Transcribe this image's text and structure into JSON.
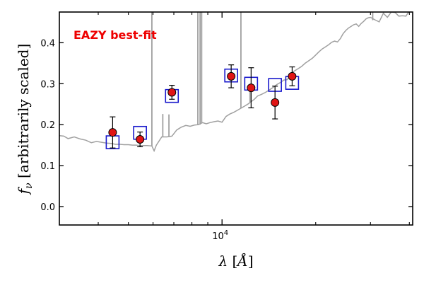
{
  "chart_data": {
    "type": "scatter",
    "title": "",
    "xlabel": "λ [Å]",
    "ylabel": "f_ν [arbitrarily scaled]",
    "x_scale": "log",
    "xlim": [
      3000,
      41000
    ],
    "ylim": [
      -0.045,
      0.475
    ],
    "yticks": [
      0.0,
      0.1,
      0.2,
      0.3,
      0.4
    ],
    "ytick_labels": [
      "0.0",
      "0.1",
      "0.2",
      "0.3",
      "0.4"
    ],
    "xticks": [
      10000
    ],
    "xtick_labels": [
      {
        "base": "10",
        "exp": "4"
      }
    ],
    "x_minor_ticks": [
      4000,
      5000,
      6000,
      7000,
      8000,
      9000,
      20000,
      30000,
      40000
    ],
    "annotation": {
      "text": "EAZY best-fit",
      "color": "#ee0000"
    },
    "colors": {
      "template": "#a0a0a0",
      "model": "#1a1acc",
      "observed_fill": "#e01515",
      "errorbar": "#000000"
    },
    "series": [
      {
        "name": "observed photometry",
        "marker": "circle",
        "x": [
          4450,
          5450,
          6900,
          10700,
          12400,
          14800,
          16800
        ],
        "y": [
          0.181,
          0.164,
          0.279,
          0.318,
          0.29,
          0.254,
          0.318
        ],
        "yerr": [
          0.038,
          0.018,
          0.017,
          0.028,
          0.049,
          0.04,
          0.023
        ]
      },
      {
        "name": "model photometry",
        "marker": "square",
        "x": [
          4450,
          5450,
          6900,
          10700,
          12400,
          14800,
          16800
        ],
        "y": [
          0.157,
          0.18,
          0.27,
          0.32,
          0.3,
          0.297,
          0.302
        ]
      },
      {
        "name": "EAZY best-fit template",
        "type": "line",
        "x": [
          3000,
          3100,
          3200,
          3350,
          3500,
          3650,
          3800,
          3950,
          4100,
          4250,
          4400,
          4550,
          4700,
          4850,
          5000,
          5150,
          5300,
          5450,
          5600,
          5750,
          5950,
          6050,
          6150,
          6400,
          6650,
          6900,
          7150,
          7400,
          7650,
          7900,
          8150,
          8400,
          8650,
          8900,
          9150,
          9400,
          9700,
          10000,
          10300,
          10600,
          10900,
          11200,
          11500,
          11800,
          12100,
          12400,
          12700,
          13000,
          13400,
          13800,
          14200,
          14600,
          15000,
          15400,
          15800,
          16200,
          16600,
          17000,
          17500,
          18000,
          18500,
          19000,
          19500,
          20000,
          20500,
          21000,
          21500,
          22000,
          22500,
          23000,
          23500,
          24000,
          24500,
          25000,
          25500,
          26000,
          26500,
          27000,
          27500,
          28000,
          28500,
          29000,
          29500,
          30000,
          31000,
          32000,
          33000,
          34000,
          35000,
          36000,
          37000,
          38000,
          39000,
          40000
        ],
        "y": [
          0.173,
          0.172,
          0.166,
          0.17,
          0.165,
          0.162,
          0.156,
          0.159,
          0.157,
          0.155,
          0.154,
          0.152,
          0.152,
          0.151,
          0.151,
          0.15,
          0.15,
          0.149,
          0.149,
          0.149,
          0.148,
          0.136,
          0.15,
          0.17,
          0.17,
          0.172,
          0.187,
          0.194,
          0.198,
          0.196,
          0.199,
          0.2,
          0.205,
          0.202,
          0.205,
          0.207,
          0.209,
          0.206,
          0.22,
          0.226,
          0.23,
          0.235,
          0.24,
          0.245,
          0.25,
          0.256,
          0.262,
          0.27,
          0.274,
          0.279,
          0.285,
          0.291,
          0.298,
          0.303,
          0.309,
          0.31,
          0.322,
          0.33,
          0.336,
          0.342,
          0.35,
          0.356,
          0.362,
          0.37,
          0.378,
          0.385,
          0.39,
          0.395,
          0.401,
          0.404,
          0.402,
          0.41,
          0.422,
          0.43,
          0.436,
          0.44,
          0.444,
          0.446,
          0.44,
          0.447,
          0.452,
          0.458,
          0.461,
          0.462,
          0.456,
          0.451,
          0.472,
          0.462,
          0.475,
          0.474,
          0.465,
          0.466,
          0.465,
          0.478
        ]
      },
      {
        "name": "template emission lines",
        "type": "vlines",
        "lines": [
          {
            "x": 5950,
            "y0": 0.148,
            "y1": 0.5
          },
          {
            "x": 6450,
            "y0": 0.171,
            "y1": 0.226
          },
          {
            "x": 6750,
            "y0": 0.17,
            "y1": 0.225
          },
          {
            "x": 8360,
            "y0": 0.2,
            "y1": 0.5
          },
          {
            "x": 8500,
            "y0": 0.2,
            "y1": 0.5
          },
          {
            "x": 8600,
            "y0": 0.203,
            "y1": 0.5
          },
          {
            "x": 11500,
            "y0": 0.24,
            "y1": 0.5
          },
          {
            "x": 12300,
            "y0": 0.255,
            "y1": 0.285
          },
          {
            "x": 30500,
            "y0": 0.455,
            "y1": 0.5
          }
        ]
      }
    ]
  }
}
